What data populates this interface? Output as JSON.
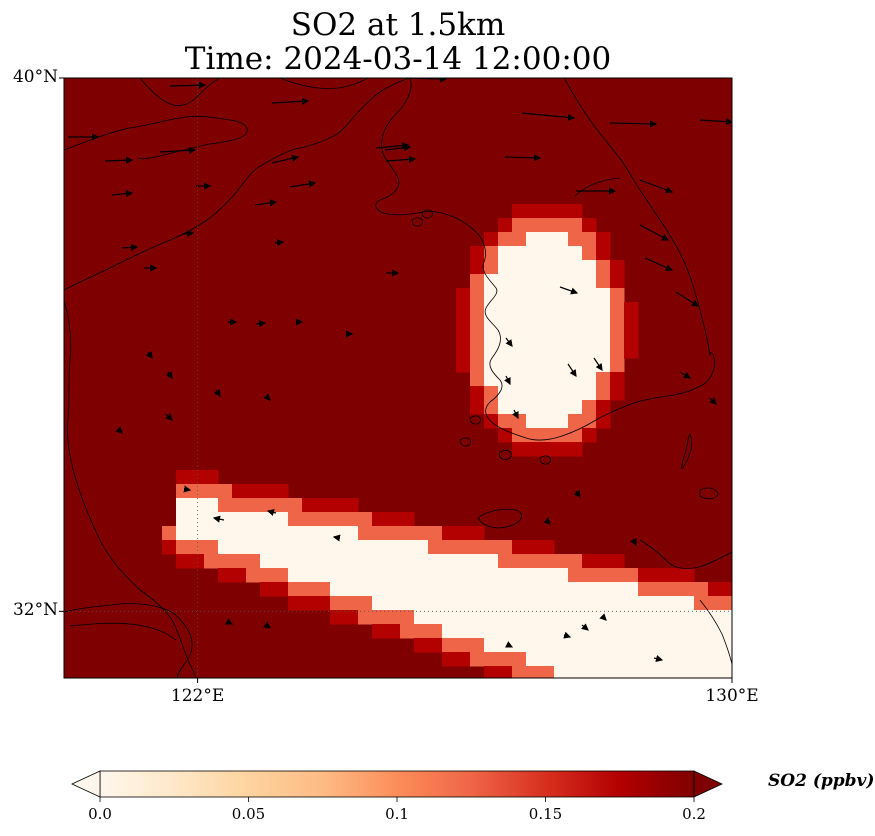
{
  "title": {
    "line1": "SO2 at 1.5km",
    "line2": "Time: 2024-03-14 12:00:00"
  },
  "map": {
    "lon_range": [
      120,
      130
    ],
    "lat_range": [
      31,
      40
    ],
    "lat_ticks": [
      {
        "value": 40,
        "label": "40°N"
      },
      {
        "value": 32,
        "label": "32°N"
      }
    ],
    "lon_ticks": [
      {
        "value": 122,
        "label": "122°E"
      },
      {
        "value": 130,
        "label": "130°E"
      }
    ],
    "gridlines": "dotted",
    "background_color": "#7f0000",
    "features": [
      "coastlines",
      "wind-vectors",
      "so2-concentration-field"
    ]
  },
  "colorbar": {
    "label": "SO2 (ppbv)",
    "min": 0.0,
    "max": 0.2,
    "ticks": [
      "0.0",
      "0.05",
      "0.1",
      "0.15",
      "0.2"
    ],
    "colormap": "OrRd",
    "colors": [
      "#fff7ec",
      "#fee8c8",
      "#fdd49e",
      "#fdbb84",
      "#fc8d59",
      "#ef6548",
      "#d7301f",
      "#b30000",
      "#7f0000"
    ],
    "extend": "both"
  }
}
